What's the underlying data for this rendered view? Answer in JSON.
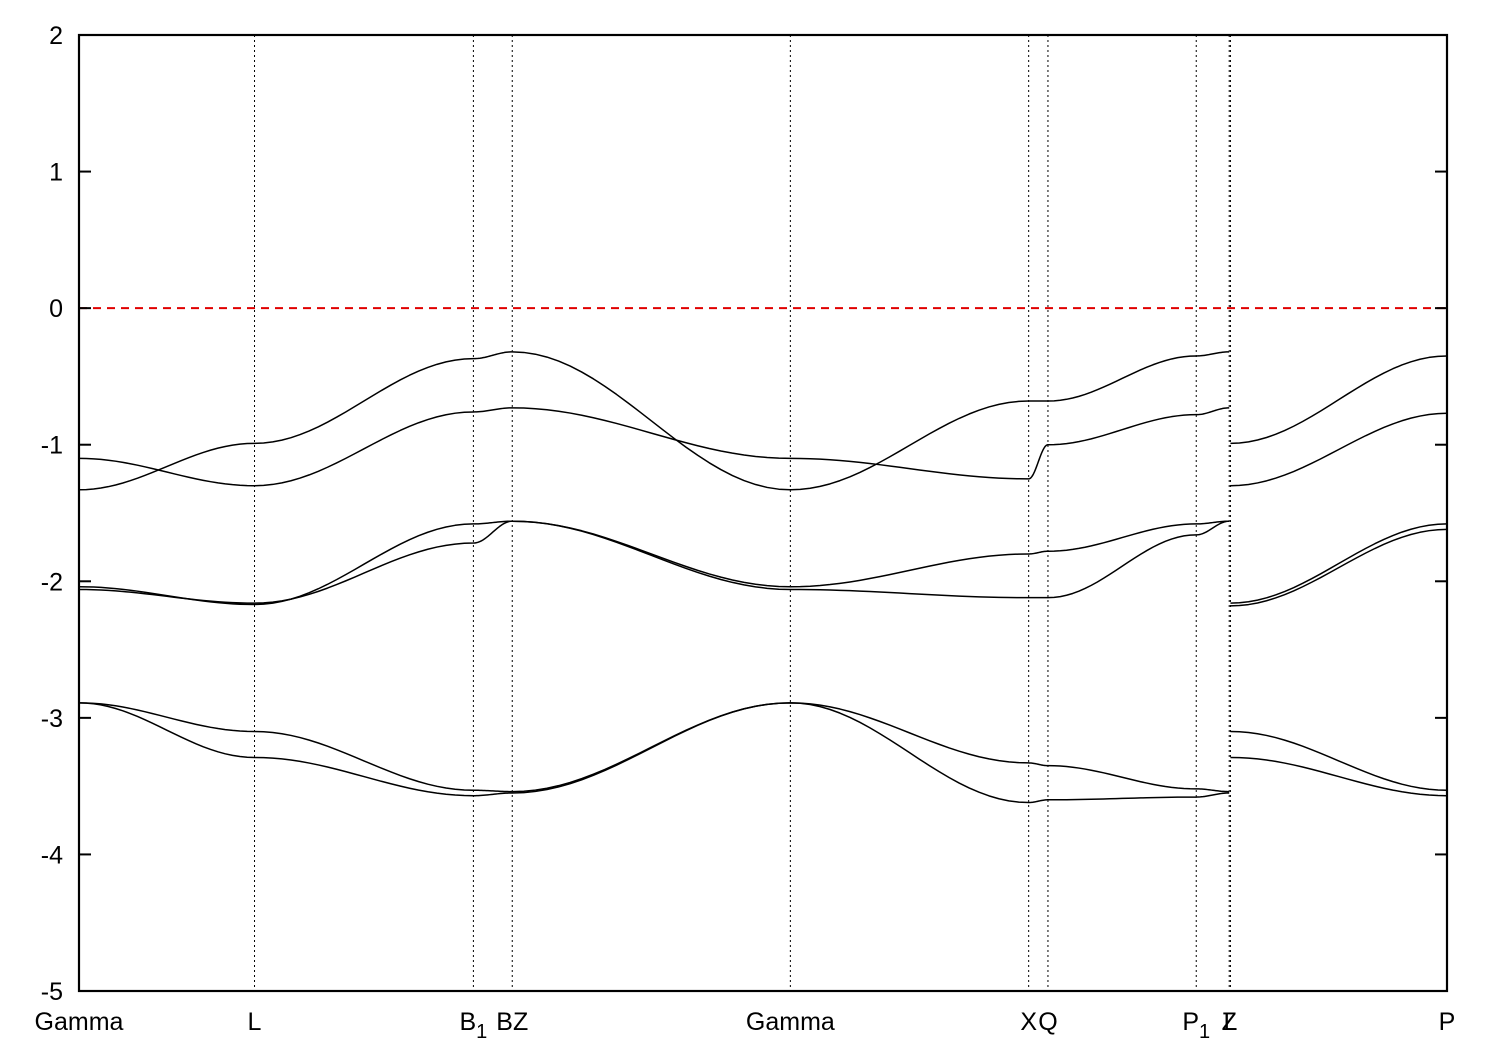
{
  "chart_data": {
    "type": "line",
    "title": "",
    "xlabel": "",
    "ylabel": "",
    "ylim": [
      -5,
      2
    ],
    "yticks": [
      -5,
      -4,
      -3,
      -2,
      -1,
      0,
      1,
      2
    ],
    "xlim": [
      0,
      10
    ],
    "grid": false,
    "fermi_level": 0,
    "fermi_color": "#e00000",
    "kpoints": [
      {
        "label": "Gamma",
        "sub": "",
        "x": 0.0
      },
      {
        "label": "L",
        "sub": "",
        "x": 1.283
      },
      {
        "label": "B",
        "sub": "1",
        "x": 2.883
      },
      {
        "label": "BZ",
        "sub": "",
        "x": 3.167
      },
      {
        "label": "Gamma",
        "sub": "",
        "x": 5.2
      },
      {
        "label": "X",
        "sub": "",
        "x": 6.942
      },
      {
        "label": "Q",
        "sub": "",
        "x": 7.083
      },
      {
        "label": "P",
        "sub": "1",
        "x": 8.167
      },
      {
        "label": "Z",
        "sub": "",
        "x": 8.408
      },
      {
        "label": "L",
        "sub": "",
        "x": 8.417
      },
      {
        "label": "P",
        "sub": "",
        "x": 10.0
      }
    ],
    "series": [
      {
        "values": [
          [
            0,
            -1.33
          ],
          [
            1.283,
            -0.99
          ],
          [
            2.883,
            -0.37
          ],
          [
            3.167,
            -0.32
          ],
          [
            5.2,
            -1.33
          ],
          [
            6.942,
            -0.68
          ],
          [
            7.083,
            -0.68
          ],
          [
            8.167,
            -0.35
          ],
          [
            8.408,
            -0.32
          ]
        ]
      },
      {
        "values": [
          [
            0,
            -1.1
          ],
          [
            1.283,
            -1.3
          ],
          [
            2.883,
            -0.76
          ],
          [
            3.167,
            -0.73
          ],
          [
            5.2,
            -1.1
          ],
          [
            6.942,
            -1.25
          ],
          [
            7.083,
            -1.0
          ],
          [
            8.167,
            -0.78
          ],
          [
            8.408,
            -0.73
          ]
        ]
      },
      {
        "values": [
          [
            0,
            -2.04
          ],
          [
            1.283,
            -2.17
          ],
          [
            2.883,
            -1.58
          ],
          [
            3.167,
            -1.56
          ],
          [
            5.2,
            -2.04
          ],
          [
            6.942,
            -1.8
          ],
          [
            7.083,
            -1.78
          ],
          [
            8.167,
            -1.58
          ],
          [
            8.408,
            -1.56
          ]
        ]
      },
      {
        "values": [
          [
            0,
            -2.06
          ],
          [
            1.283,
            -2.16
          ],
          [
            2.883,
            -1.72
          ],
          [
            3.167,
            -1.56
          ],
          [
            5.2,
            -2.06
          ],
          [
            6.942,
            -2.12
          ],
          [
            7.083,
            -2.12
          ],
          [
            8.167,
            -1.66
          ],
          [
            8.408,
            -1.56
          ]
        ]
      },
      {
        "values": [
          [
            0,
            -2.89
          ],
          [
            1.283,
            -3.1
          ],
          [
            2.883,
            -3.53
          ],
          [
            3.167,
            -3.54
          ],
          [
            5.2,
            -2.89
          ],
          [
            6.942,
            -3.33
          ],
          [
            7.083,
            -3.35
          ],
          [
            8.167,
            -3.52
          ],
          [
            8.408,
            -3.54
          ]
        ]
      },
      {
        "values": [
          [
            0,
            -2.89
          ],
          [
            1.283,
            -3.29
          ],
          [
            2.883,
            -3.57
          ],
          [
            3.167,
            -3.55
          ],
          [
            5.2,
            -2.89
          ],
          [
            6.942,
            -3.62
          ],
          [
            7.083,
            -3.6
          ],
          [
            8.167,
            -3.58
          ],
          [
            8.408,
            -3.55
          ]
        ]
      },
      {
        "values": [
          [
            8.417,
            -0.99
          ],
          [
            10.0,
            -0.35
          ]
        ]
      },
      {
        "values": [
          [
            8.417,
            -1.3
          ],
          [
            10.0,
            -0.77
          ]
        ]
      },
      {
        "values": [
          [
            8.417,
            -2.16
          ],
          [
            10.0,
            -1.58
          ]
        ]
      },
      {
        "values": [
          [
            8.417,
            -2.18
          ],
          [
            10.0,
            -1.62
          ]
        ]
      },
      {
        "values": [
          [
            8.417,
            -3.1
          ],
          [
            10.0,
            -3.53
          ]
        ]
      },
      {
        "values": [
          [
            8.417,
            -3.29
          ],
          [
            10.0,
            -3.57
          ]
        ]
      }
    ]
  }
}
